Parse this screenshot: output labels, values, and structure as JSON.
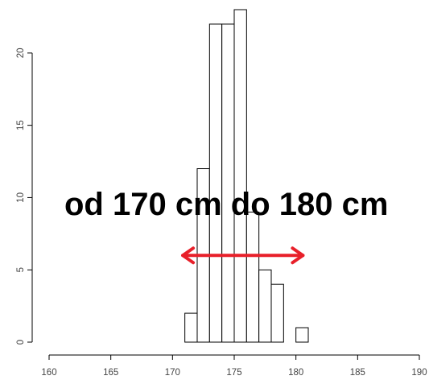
{
  "chart_data": {
    "type": "bar",
    "title": "",
    "xlabel": "",
    "ylabel": "",
    "xlim": [
      160,
      190
    ],
    "ylim": [
      0,
      23
    ],
    "x_ticks": [
      160,
      165,
      170,
      175,
      180,
      185,
      190
    ],
    "y_ticks": [
      0,
      5,
      10,
      15,
      20
    ],
    "bin_width": 1,
    "bins": [
      {
        "start": 171,
        "end": 172,
        "count": 2
      },
      {
        "start": 172,
        "end": 173,
        "count": 12
      },
      {
        "start": 173,
        "end": 174,
        "count": 22
      },
      {
        "start": 174,
        "end": 175,
        "count": 22
      },
      {
        "start": 175,
        "end": 176,
        "count": 23
      },
      {
        "start": 176,
        "end": 177,
        "count": 9
      },
      {
        "start": 177,
        "end": 178,
        "count": 5
      },
      {
        "start": 178,
        "end": 179,
        "count": 4
      },
      {
        "start": 179,
        "end": 180,
        "count": 0
      },
      {
        "start": 180,
        "end": 181,
        "count": 1
      }
    ],
    "grid": false,
    "bar_fill": "#ffffff",
    "bar_stroke": "#000000",
    "annotation": {
      "text": "od 170 cm do 180 cm",
      "color": "#000000",
      "arrow": {
        "x_start": 170.7,
        "x_end": 180.7,
        "y": 6,
        "color": "#e8202a",
        "style": "double-headed"
      }
    }
  }
}
